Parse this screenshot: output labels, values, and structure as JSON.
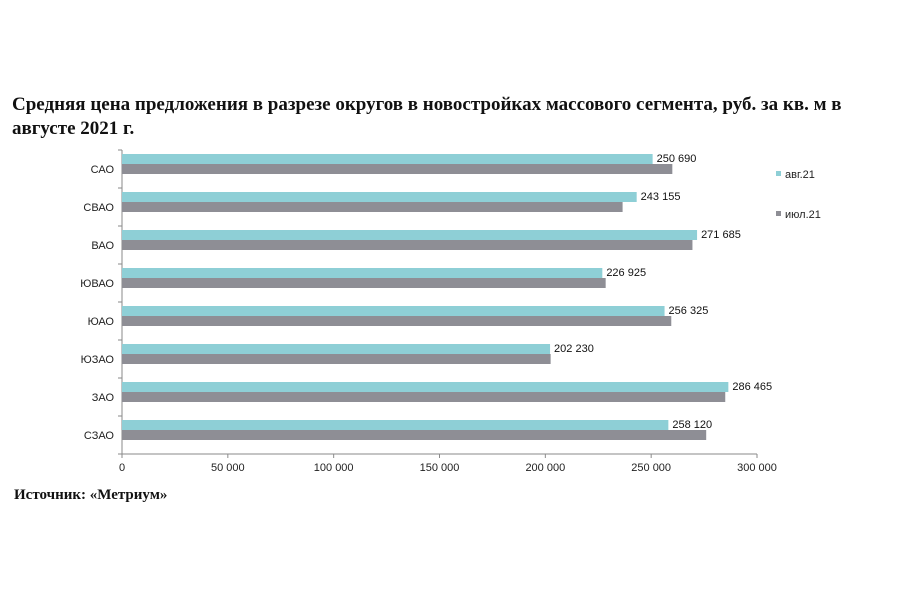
{
  "chart_data": {
    "type": "bar",
    "orientation": "horizontal",
    "title": "Средняя цена предложения в разрезе округов в новостройках массового сегмента, руб. за кв. м в августе 2021 г.",
    "categories": [
      "САО",
      "СВАО",
      "ВАО",
      "ЮВАО",
      "ЮАО",
      "ЮЗАО",
      "ЗАО",
      "СЗАО"
    ],
    "series": [
      {
        "name": "авг.21",
        "color": "#8ecfd6",
        "values": [
          250690,
          243155,
          271685,
          226925,
          256325,
          202230,
          286465,
          258120
        ],
        "labels": [
          "250 690",
          "243 155",
          "271 685",
          "226 925",
          "256 325",
          "202 230",
          "286 465",
          "258 120"
        ]
      },
      {
        "name": "июл.21",
        "color": "#8e8e95",
        "values": [
          260000,
          236500,
          269500,
          228500,
          259500,
          202500,
          285000,
          276000
        ]
      }
    ],
    "xlim": [
      0,
      300000
    ],
    "xticks": [
      0,
      50000,
      100000,
      150000,
      200000,
      250000,
      300000
    ],
    "xtick_labels": [
      "0",
      "50 000",
      "100 000",
      "150 000",
      "200 000",
      "250 000",
      "300 000"
    ],
    "legend_position": "right",
    "grid": false
  },
  "source": "Источник: «Метриум»"
}
